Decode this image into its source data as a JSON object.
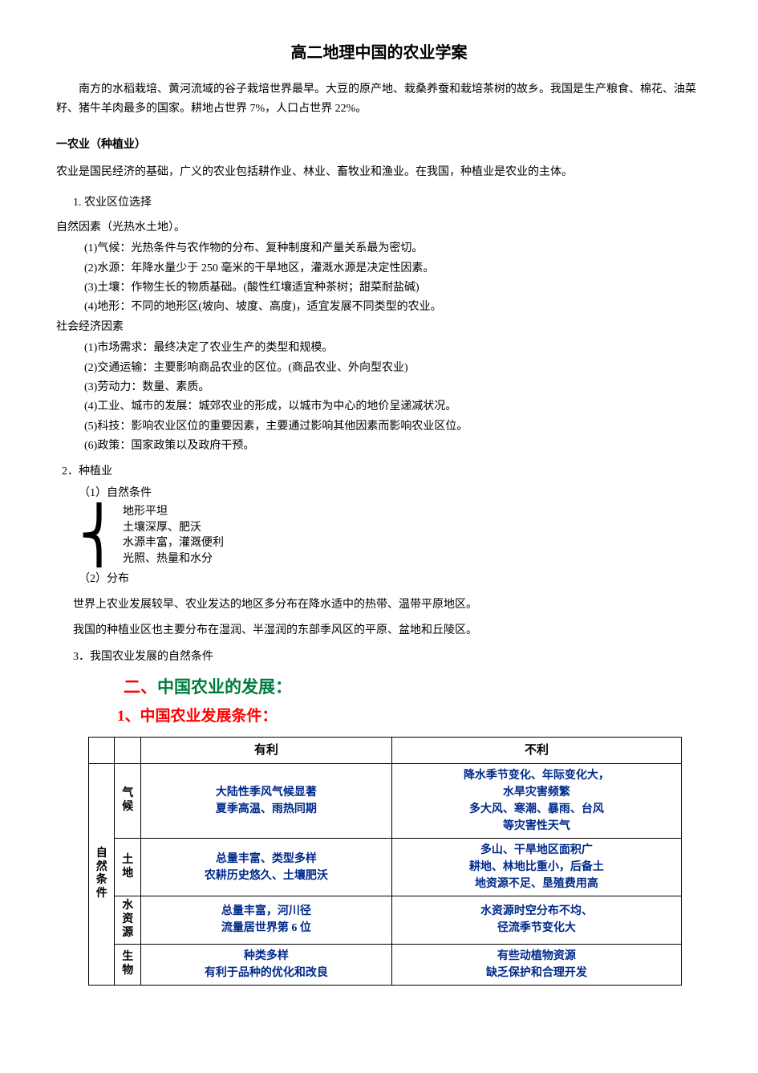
{
  "title": "高二地理中国的农业学案",
  "intro": "南方的水稻栽培、黄河流域的谷子栽培世界最早。大豆的原产地、栽桑养蚕和栽培茶树的故乡。我国是生产粮食、棉花、油菜籽、猪牛羊肉最多的国家。耕地占世界 7%，人口占世界 22%。",
  "section1_heading": "一农业（种植业）",
  "section1_para": "农业是国民经济的基础，广义的农业包括耕作业、林业、畜牧业和渔业。在我国，种植业是农业的主体。",
  "item1_num": "1. 农业区位选择",
  "natural_heading": "自然因素（光热水土地）。",
  "natural_factors": [
    "(1)气候：光热条件与农作物的分布、复种制度和产量关系最为密切。",
    "(2)水源：年降水量少于 250 毫米的干旱地区，灌溉水源是决定性因素。",
    "(3)土壤：作物生长的物质基础。(酸性红壤适宜种茶树；甜菜耐盐碱)",
    "(4)地形：不同的地形区(坡向、坡度、高度)，适宜发展不同类型的农业。"
  ],
  "social_heading": "社会经济因素",
  "social_factors": [
    "(1)市场需求：最终决定了农业生产的类型和规模。",
    "(2)交通运输：主要影响商品农业的区位。(商品农业、外向型农业)",
    "(3)劳动力：数量、素质。",
    "(4)工业、城市的发展：城郊农业的形成，以城市为中心的地价呈递减状况。",
    "(5)科技：影响农业区位的重要因素，主要通过影响其他因素而影响农业区位。",
    "(6)政策：国家政策以及政府干预。"
  ],
  "item2_num": "2．种植业",
  "sub1": "（1）自然条件",
  "brace_items": [
    "地形平坦",
    "土壤深厚、肥沃",
    "水源丰富，灌溉便利",
    "光照、热量和水分"
  ],
  "sub2": "（2）分布",
  "dist_p1": "世界上农业发展较早、农业发达的地区多分布在降水适中的热带、温带平原地区。",
  "dist_p2": "我国的种植业区也主要分布在湿润、半湿润的东部季风区的平原、盆地和丘陵区。",
  "item3_num": "3．我国农业发展的自然条件",
  "h2_num": "二、",
  "h2_txt": "中国农业的发展：",
  "h3_num": "1、",
  "h3_txt": "中国农业发展条件：",
  "table": {
    "col_fav": "有利",
    "col_unfav": "不利",
    "side_label": "自然条件",
    "rows": [
      {
        "factor": "气候",
        "fav": "大陆性季风气候显著\n夏季高温、雨热同期",
        "unfav": "降水季节变化、年际变化大，\n水旱灾害频繁\n多大风、寒潮、暴雨、台风\n等灾害性天气"
      },
      {
        "factor": "土地",
        "fav": "总量丰富、类型多样\n农耕历史悠久、土壤肥沃",
        "unfav": "多山、干旱地区面积广\n耕地、林地比重小，后备土\n地资源不足、垦殖费用高"
      },
      {
        "factor": "水资源",
        "fav": "总量丰富，河川径\n流量居世界第 6 位",
        "unfav": "水资源时空分布不均、\n径流季节变化大"
      },
      {
        "factor": "生物",
        "fav": "种类多样\n有利于品种的优化和改良",
        "unfav": "有些动植物资源\n缺乏保护和合理开发"
      }
    ]
  },
  "colors": {
    "red": "#ff0000",
    "green": "#007b3e",
    "blue": "#002a8a",
    "black": "#000000",
    "bg": "#ffffff"
  }
}
